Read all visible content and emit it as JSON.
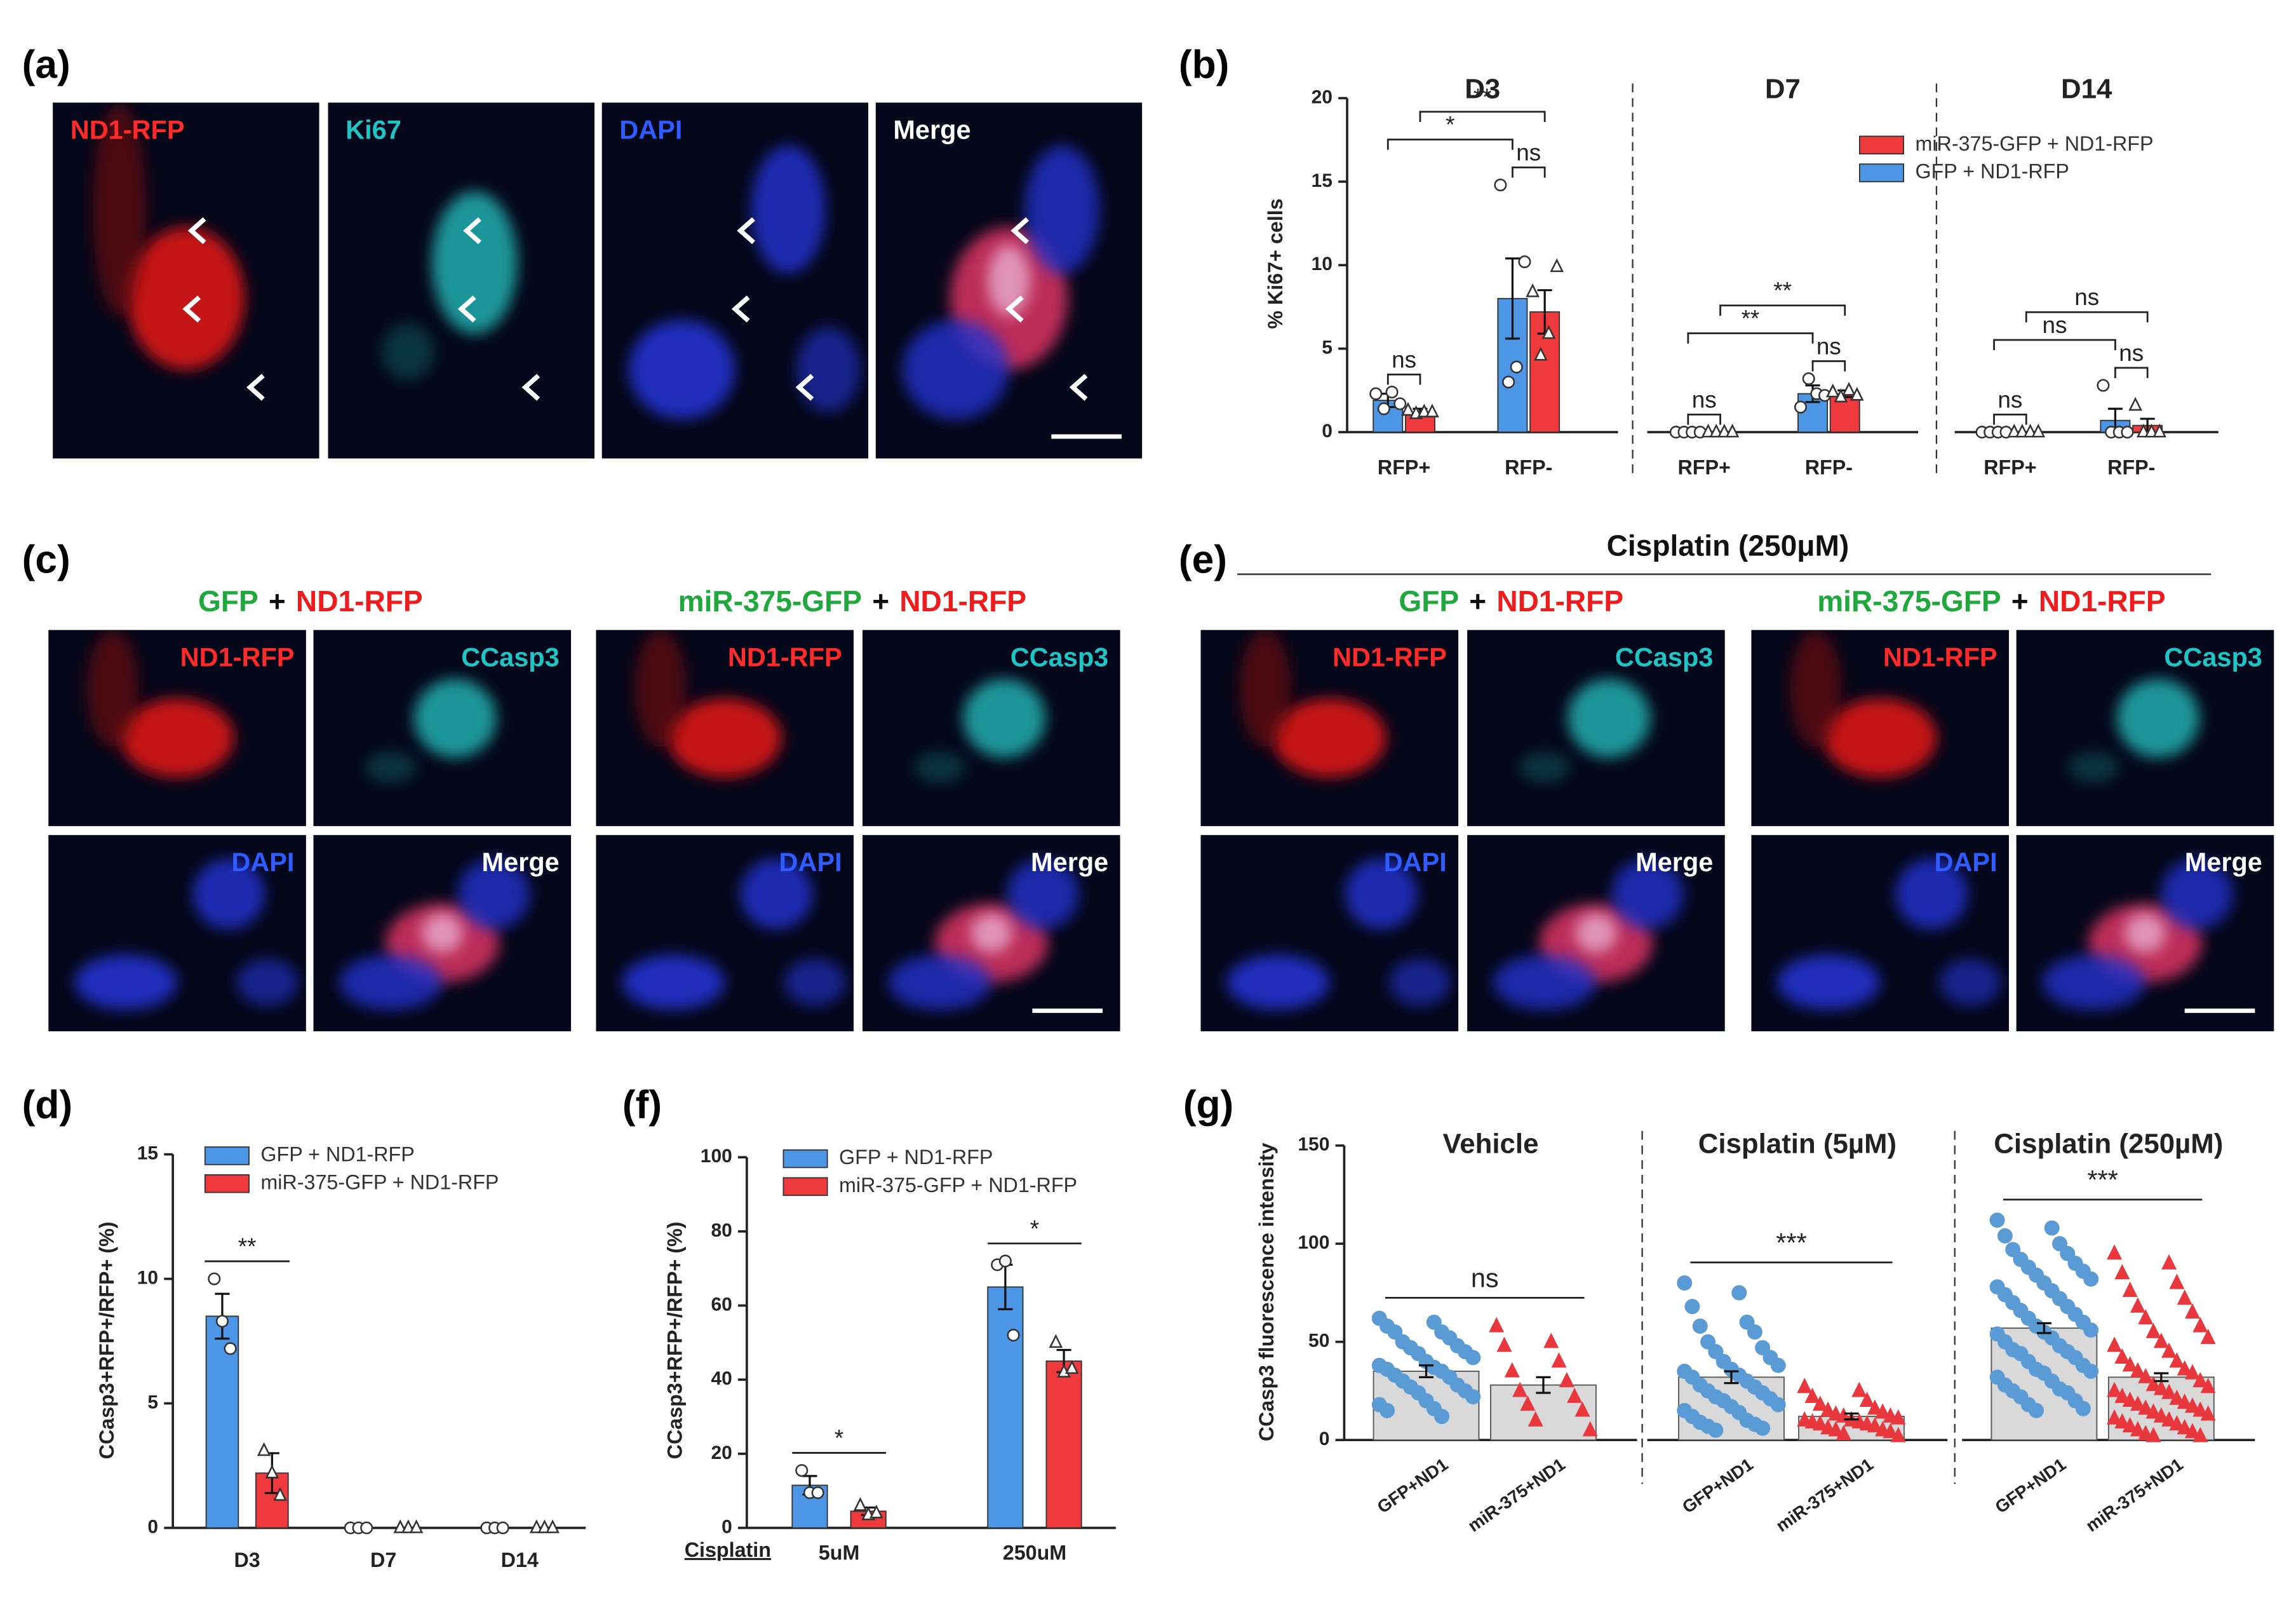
{
  "panel_labels": [
    "(a)",
    "(b)",
    "(c)",
    "(d)",
    "(e)",
    "(f)",
    "(g)"
  ],
  "panel_a": {
    "channels": [
      "ND1-RFP",
      "Ki67",
      "DAPI",
      "Merge"
    ]
  },
  "panel_c": {
    "headings": [
      [
        "GFP",
        "+",
        "ND1-RFP"
      ],
      [
        "miR-375-GFP",
        "+",
        "ND1-RFP"
      ]
    ],
    "channels": [
      "ND1-RFP",
      "CCasp3",
      "DAPI",
      "Merge"
    ]
  },
  "panel_e": {
    "title": "Cisplatin (250μM)",
    "headings": [
      [
        "GFP",
        "+",
        "ND1-RFP"
      ],
      [
        "miR-375-GFP",
        "+",
        "ND1-RFP"
      ]
    ],
    "channels": [
      "ND1-RFP",
      "CCasp3",
      "DAPI",
      "Merge"
    ]
  },
  "chart_data": [
    {
      "type": "bar",
      "ylabel": "% Ki67+ cells",
      "ylim": [
        0,
        20
      ],
      "yticks": [
        0,
        5,
        10,
        15,
        20
      ],
      "series": [
        {
          "name": "GFP + ND1-RFP",
          "color": "#4d96e6",
          "marker": "circle"
        },
        {
          "name": "miR-375-GFP + ND1-RFP",
          "color": "#ee3a3c",
          "marker": "triangle"
        }
      ],
      "panels": [
        {
          "title": "D3",
          "categories": [
            "RFP+",
            "RFP-"
          ],
          "values": [
            [
              1.9,
              8.0
            ],
            [
              1.2,
              7.2
            ]
          ],
          "errors": [
            [
              0.4,
              2.4
            ],
            [
              0.2,
              1.3
            ]
          ],
          "points": [
            [
              [
                2.3,
                1.4,
                2.4,
                1.7
              ],
              [
                14.8,
                3.0,
                3.9,
                10.2
              ]
            ],
            [
              [
                1.3,
                1.1,
                1.2,
                1.2
              ],
              [
                8.4,
                4.6,
                5.9,
                9.9
              ]
            ]
          ],
          "comparisons": [
            "ns",
            "ns",
            "*",
            "**"
          ]
        },
        {
          "title": "D7",
          "categories": [
            "RFP+",
            "RFP-"
          ],
          "values": [
            [
              0,
              2.3
            ],
            [
              0,
              2.3
            ]
          ],
          "errors": [
            [
              0,
              0.5
            ],
            [
              0,
              0.2
            ]
          ],
          "points": [
            [
              [
                0,
                0,
                0,
                0
              ],
              [
                1.5,
                3.2,
                2.3,
                2.2
              ]
            ],
            [
              [
                0,
                0,
                0,
                0
              ],
              [
                2.4,
                2.1,
                2.5,
                2.2
              ]
            ]
          ],
          "comparisons": [
            "ns",
            "ns",
            "**",
            "**"
          ]
        },
        {
          "title": "D14",
          "categories": [
            "RFP+",
            "RFP-"
          ],
          "values": [
            [
              0,
              0.7
            ],
            [
              0,
              0.4
            ]
          ],
          "errors": [
            [
              0,
              0.7
            ],
            [
              0,
              0.4
            ]
          ],
          "points": [
            [
              [
                0,
                0,
                0,
                0
              ],
              [
                2.8,
                0,
                0,
                0
              ]
            ],
            [
              [
                0,
                0,
                0,
                0
              ],
              [
                1.6,
                0,
                0,
                0
              ]
            ]
          ],
          "comparisons": [
            "ns",
            "ns",
            "ns",
            "ns"
          ]
        }
      ]
    },
    {
      "type": "bar",
      "ylabel": "CCasp3+RFP+/RFP+ (%)",
      "ylim": [
        0,
        15
      ],
      "yticks": [
        0,
        5,
        10,
        15
      ],
      "series": [
        {
          "name": "GFP + ND1-RFP",
          "color": "#4d96e6",
          "marker": "circle"
        },
        {
          "name": "miR-375-GFP + ND1-RFP",
          "color": "#ee3a3c",
          "marker": "triangle"
        }
      ],
      "panels": [
        {
          "categories": [
            "D3",
            "D7",
            "D14"
          ],
          "values": [
            [
              8.5,
              0,
              0
            ],
            [
              2.2,
              0,
              0
            ]
          ],
          "errors": [
            [
              0.9,
              0,
              0
            ],
            [
              0.8,
              0,
              0
            ]
          ],
          "points": [
            [
              [
                10.0,
                8.3,
                7.2
              ],
              [
                0,
                0,
                0
              ],
              [
                0,
                0,
                0
              ]
            ],
            [
              [
                3.1,
                2.2,
                1.3
              ],
              [
                0,
                0,
                0
              ],
              [
                0,
                0,
                0
              ]
            ]
          ],
          "comparisons": [
            "**"
          ]
        }
      ]
    },
    {
      "type": "bar",
      "ylabel": "CCasp3+RFP+/RFP+ (%)",
      "xlabel": "Cisplatin",
      "ylim": [
        0,
        100
      ],
      "yticks": [
        0,
        20,
        40,
        60,
        80,
        100
      ],
      "series": [
        {
          "name": "GFP + ND1-RFP",
          "color": "#4d96e6",
          "marker": "circle"
        },
        {
          "name": "miR-375-GFP + ND1-RFP",
          "color": "#ee3a3c",
          "marker": "triangle"
        }
      ],
      "panels": [
        {
          "categories": [
            "5uM",
            "250uM"
          ],
          "values": [
            [
              11.5,
              65
            ],
            [
              4.5,
              45
            ]
          ],
          "errors": [
            [
              2.5,
              6
            ],
            [
              1,
              3
            ]
          ],
          "points": [
            [
              [
                15.5,
                9.5,
                9.5
              ],
              [
                71,
                72,
                52
              ]
            ],
            [
              [
                6,
                3.5,
                4
              ],
              [
                50,
                42,
                43
              ]
            ]
          ],
          "comparisons": [
            "*",
            "*"
          ]
        }
      ]
    },
    {
      "type": "bar_scatter",
      "ylabel": "CCasp3 fluorescence intensity",
      "ylim": [
        0,
        150
      ],
      "yticks": [
        0,
        50,
        100,
        150
      ],
      "bar_color": "#d9d9d9",
      "series": [
        {
          "name": "GFP+ND1",
          "color": "#5b9bd5",
          "marker": "circle"
        },
        {
          "name": "miR-375+ND1",
          "color": "#e8383d",
          "marker": "triangle"
        }
      ],
      "panels": [
        {
          "title": "Vehicle",
          "values": [
            35,
            28
          ],
          "errors": [
            3,
            4
          ],
          "points": [
            [
              62,
              60,
              58,
              55,
              55,
              52,
              50,
              48,
              47,
              45,
              44,
              42,
              40,
              38,
              37,
              36,
              35,
              33,
              32,
              30,
              28,
              27,
              25,
              24,
              22,
              20,
              18,
              16,
              15,
              12
            ],
            [
              58,
              50,
              48,
              40,
              35,
              30,
              25,
              22,
              18,
              15,
              10,
              5
            ]
          ],
          "comparisons": [
            "ns"
          ]
        },
        {
          "title": "Cisplatin (5µM)",
          "values": [
            32,
            12
          ],
          "errors": [
            3,
            1.5
          ],
          "points": [
            [
              80,
              75,
              68,
              60,
              58,
              55,
              50,
              47,
              45,
              42,
              40,
              38,
              36,
              35,
              33,
              32,
              30,
              28,
              27,
              25,
              24,
              22,
              21,
              20,
              18,
              17,
              15,
              14,
              12,
              10,
              9,
              8,
              7,
              6,
              5
            ],
            [
              27,
              25,
              22,
              20,
              18,
              16,
              15,
              14,
              13,
              12,
              12,
              11,
              10,
              10,
              9,
              9,
              8,
              8,
              7,
              6,
              5,
              5,
              4,
              3,
              2
            ]
          ],
          "comparisons": [
            "***"
          ]
        },
        {
          "title": "Cisplatin (250µM)",
          "values": [
            57,
            32
          ],
          "errors": [
            2.5,
            2
          ],
          "points": [
            [
              112,
              108,
              104,
              100,
              97,
              95,
              92,
              90,
              88,
              86,
              84,
              82,
              80,
              78,
              76,
              74,
              72,
              70,
              68,
              66,
              64,
              62,
              60,
              58,
              56,
              55,
              54,
              52,
              50,
              48,
              46,
              45,
              44,
              42,
              40,
              38,
              36,
              35,
              34,
              32,
              30,
              28,
              26,
              25,
              24,
              22,
              20,
              18,
              16,
              15
            ],
            [
              95,
              90,
              85,
              80,
              76,
              72,
              68,
              65,
              62,
              58,
              55,
              52,
              50,
              48,
              45,
              42,
              40,
              38,
              36,
              35,
              34,
              32,
              30,
              28,
              27,
              26,
              25,
              24,
              22,
              21,
              20,
              19,
              18,
              17,
              16,
              15,
              14,
              13,
              12,
              11,
              10,
              9,
              8,
              7,
              6,
              5,
              4,
              3,
              2,
              2
            ]
          ],
          "comparisons": [
            "***"
          ]
        }
      ]
    }
  ]
}
